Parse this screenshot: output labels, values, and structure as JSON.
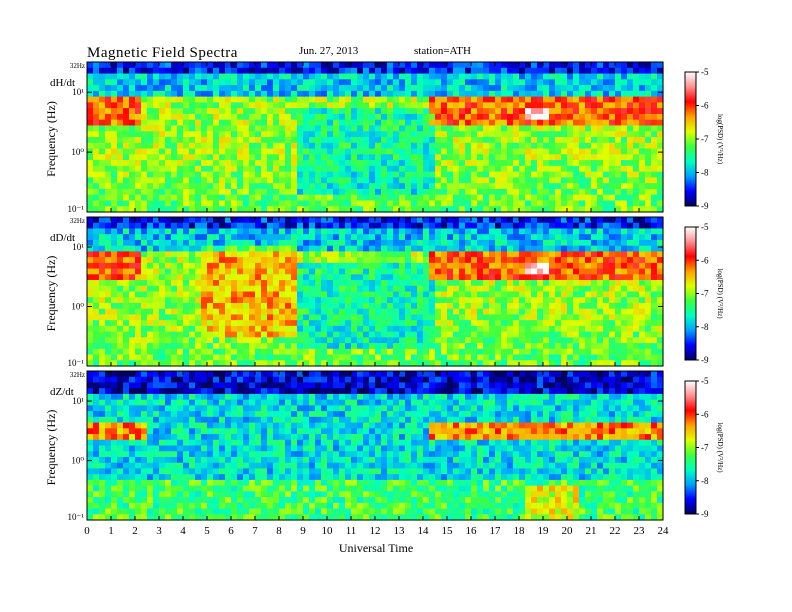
{
  "header": {
    "title": "Magnetic  Field  Spectra",
    "date": "Jun. 27, 2013",
    "station": "station=ATH"
  },
  "chart_data": {
    "type": "heatmap",
    "xlabel": "Universal Time",
    "xlim": [
      0,
      24
    ],
    "xticks": [
      "0",
      "1",
      "2",
      "3",
      "4",
      "5",
      "6",
      "7",
      "8",
      "9",
      "10",
      "11",
      "12",
      "13",
      "14",
      "15",
      "16",
      "17",
      "18",
      "19",
      "20",
      "21",
      "22",
      "23",
      "24"
    ],
    "panels": [
      {
        "component": "dH/dt",
        "ylabel": "Frequency (Hz)",
        "top_label": "32Hz",
        "yticks": [
          "10¹",
          "10⁰",
          "10⁻¹"
        ],
        "ylim_hz": [
          0.1,
          32
        ],
        "colorbar": {
          "label": "log(PSD) (V²/Hz)",
          "range": [
            -9,
            -5
          ],
          "ticks": [
            "-5",
            "-6",
            "-7",
            "-8",
            "-9"
          ]
        }
      },
      {
        "component": "dD/dt",
        "ylabel": "Frequency (Hz)",
        "top_label": "32Hz",
        "yticks": [
          "10¹",
          "10⁰",
          "10⁻¹"
        ],
        "ylim_hz": [
          0.1,
          32
        ],
        "colorbar": {
          "label": "log(PSD) (V²/Hz)",
          "range": [
            -9,
            -5
          ],
          "ticks": [
            "-5",
            "-6",
            "-7",
            "-8",
            "-9"
          ]
        }
      },
      {
        "component": "dZ/dt",
        "ylabel": "Frequency (Hz)",
        "top_label": "32Hz",
        "yticks": [
          "10¹",
          "10⁰",
          "10⁻¹"
        ],
        "ylim_hz": [
          0.1,
          32
        ],
        "colorbar": {
          "label": "log(PSD) (V²/Hz)",
          "range": [
            -9,
            -5
          ],
          "ticks": [
            "-5",
            "-6",
            "-7",
            "-8",
            "-9"
          ]
        }
      }
    ],
    "colormap": [
      "#000060",
      "#0000ff",
      "#00a0ff",
      "#00ffc0",
      "#40ff40",
      "#e0ff00",
      "#ffa000",
      "#ff0000",
      "#ff9090",
      "#ffffff"
    ]
  }
}
